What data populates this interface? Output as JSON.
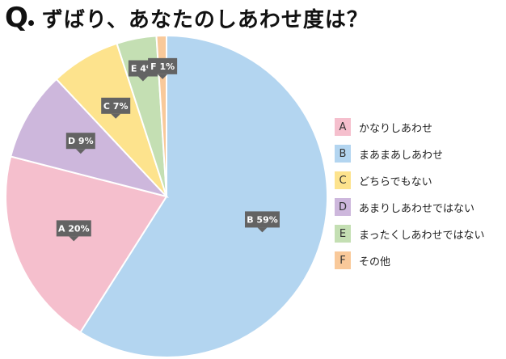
{
  "header": {
    "q_mark": "Q",
    "title": "ずばり、あなたのしあわせ度は？"
  },
  "chart_data": {
    "type": "pie",
    "title": "ずばり、あなたのしあわせ度は？",
    "legend_position": "right",
    "slices": [
      {
        "key": "A",
        "label": "かなりしあわせ",
        "value": 20,
        "display": "A 20%",
        "color": "#f5bfcd"
      },
      {
        "key": "B",
        "label": "まあまあしあわせ",
        "value": 59,
        "display": "B 59%",
        "color": "#b3d5f0"
      },
      {
        "key": "C",
        "label": "どちらでもない",
        "value": 7,
        "display": "C 7%",
        "color": "#fde38d"
      },
      {
        "key": "D",
        "label": "あまりしあわせではない",
        "value": 9,
        "display": "D 9%",
        "color": "#cdb7dc"
      },
      {
        "key": "E",
        "label": "まったくしあわせではない",
        "value": 4,
        "display": "E 4%",
        "color": "#c4dfb3"
      },
      {
        "key": "F",
        "label": "その他",
        "value": 1,
        "display": "F 1%",
        "color": "#f9c99a"
      }
    ],
    "draw_order": [
      "B",
      "A",
      "D",
      "C",
      "E",
      "F"
    ]
  }
}
